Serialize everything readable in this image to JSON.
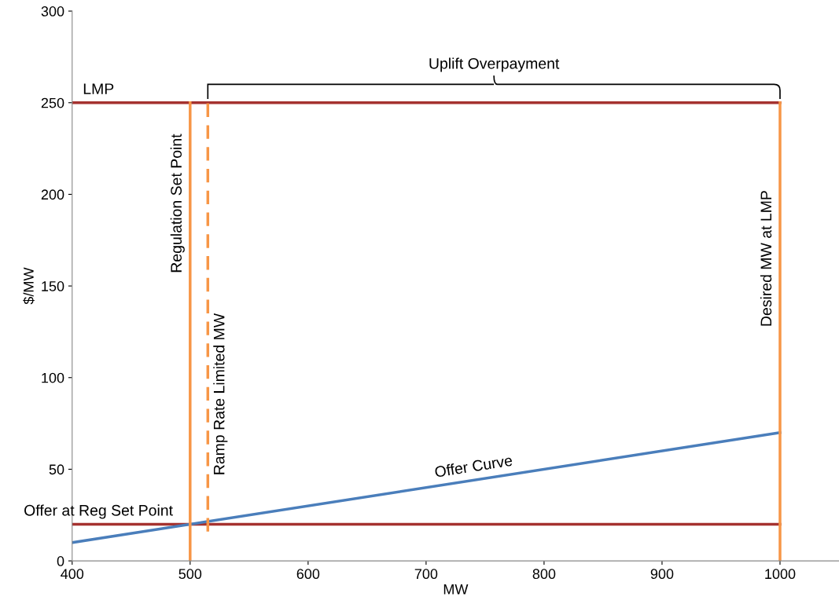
{
  "chart_data": {
    "type": "line",
    "xlabel": "MW",
    "ylabel": "$/MW",
    "xlim": [
      400,
      1050
    ],
    "ylim": [
      0,
      300
    ],
    "xticks": [
      400,
      500,
      600,
      700,
      800,
      900,
      1000
    ],
    "yticks": [
      0,
      50,
      100,
      150,
      200,
      250,
      300
    ],
    "grid": false,
    "series": [
      {
        "name": "LMP",
        "color": "#a5322f",
        "x": [
          400,
          1000
        ],
        "values": [
          250,
          250
        ]
      },
      {
        "name": "Offer at Reg Set Point",
        "color": "#a5322f",
        "x": [
          400,
          1000
        ],
        "values": [
          20,
          20
        ]
      },
      {
        "name": "Offer Curve",
        "color": "#4a7ebb",
        "x": [
          400,
          1000
        ],
        "values": [
          10,
          70
        ]
      },
      {
        "name": "Regulation Set Point",
        "color": "#f79646",
        "x": [
          500,
          500
        ],
        "values": [
          0,
          250
        ]
      },
      {
        "name": "Ramp Rate Limited MW",
        "color": "#f79646",
        "x": [
          515,
          515
        ],
        "values": [
          16,
          250
        ],
        "line_style": "dashed"
      },
      {
        "name": "Desired MW at LMP",
        "color": "#f79646",
        "x": [
          1000,
          1000
        ],
        "values": [
          0,
          250
        ]
      }
    ],
    "annotations": [
      {
        "text": "Uplift Overpayment",
        "x": 757.5,
        "y": 250
      }
    ]
  }
}
